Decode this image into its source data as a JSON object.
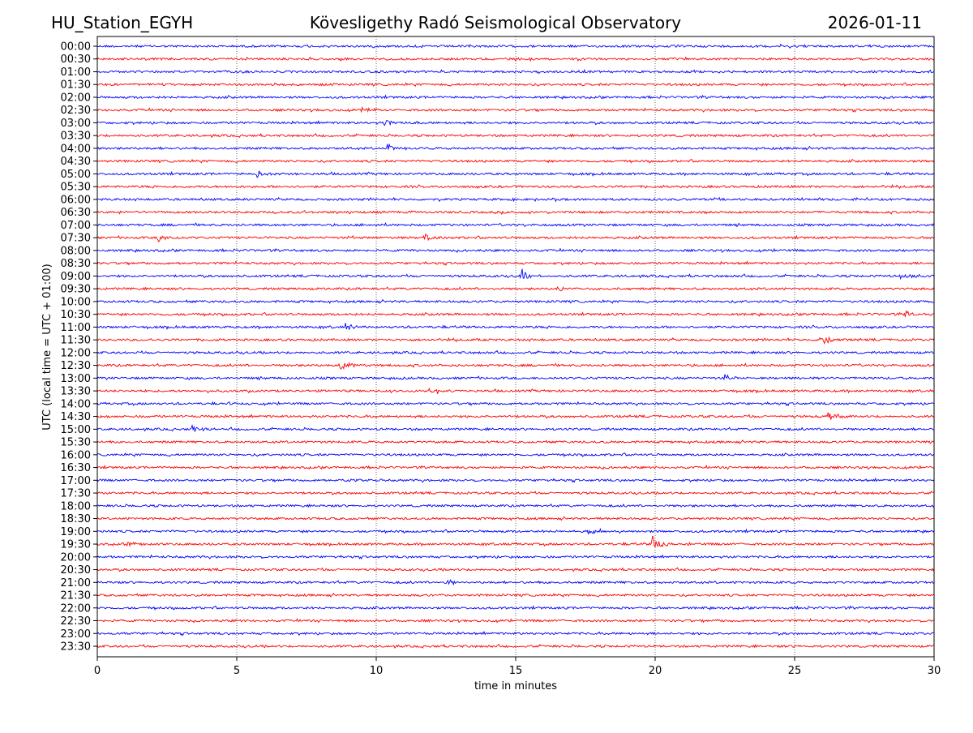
{
  "header": {
    "station": "HU_Station_EGYH",
    "title": "Kövesligethy Radó Seismological Observatory",
    "date": "2026-01-11"
  },
  "chart_data": {
    "type": "line",
    "title": "Kövesligethy Radó Seismological Observatory",
    "xlabel": "time in minutes",
    "ylabel": "UTC (local time = UTC + 01:00)",
    "xlim": [
      0,
      30
    ],
    "xticks": [
      "0",
      "5",
      "10",
      "15",
      "20",
      "25",
      "30"
    ],
    "grid": "vertical dotted at 5-minute intervals",
    "colors": [
      "#0000ff",
      "#ff0000"
    ],
    "rows": [
      "00:00",
      "00:30",
      "01:00",
      "01:30",
      "02:00",
      "02:30",
      "03:00",
      "03:30",
      "04:00",
      "04:30",
      "05:00",
      "05:30",
      "06:00",
      "06:30",
      "07:00",
      "07:30",
      "08:00",
      "08:30",
      "09:00",
      "09:30",
      "10:00",
      "10:30",
      "11:00",
      "11:30",
      "12:00",
      "12:30",
      "13:00",
      "13:30",
      "14:00",
      "14:30",
      "15:00",
      "15:30",
      "16:00",
      "16:30",
      "17:00",
      "17:30",
      "18:00",
      "18:30",
      "19:00",
      "19:30",
      "20:00",
      "20:30",
      "21:00",
      "21:30",
      "22:00",
      "22:30",
      "23:00",
      "23:30"
    ],
    "events": [
      {
        "row": "02:30",
        "minute": 9.5,
        "amplitude": 0.4
      },
      {
        "row": "03:00",
        "minute": 10.3,
        "amplitude": 0.6
      },
      {
        "row": "04:00",
        "minute": 10.4,
        "amplitude": 0.6
      },
      {
        "row": "05:00",
        "minute": 5.7,
        "amplitude": 0.5
      },
      {
        "row": "07:30",
        "minute": 2.2,
        "amplitude": 0.6
      },
      {
        "row": "07:30",
        "minute": 11.7,
        "amplitude": 0.7
      },
      {
        "row": "09:00",
        "minute": 15.2,
        "amplitude": 1.0
      },
      {
        "row": "09:00",
        "minute": 28.8,
        "amplitude": 0.5
      },
      {
        "row": "09:30",
        "minute": 16.5,
        "amplitude": 0.7
      },
      {
        "row": "10:30",
        "minute": 28.9,
        "amplitude": 0.5
      },
      {
        "row": "11:00",
        "minute": 8.9,
        "amplitude": 0.5
      },
      {
        "row": "11:30",
        "minute": 25.9,
        "amplitude": 1.0
      },
      {
        "row": "12:30",
        "minute": 8.7,
        "amplitude": 0.8
      },
      {
        "row": "13:00",
        "minute": 22.5,
        "amplitude": 0.5
      },
      {
        "row": "13:30",
        "minute": 11.9,
        "amplitude": 0.5
      },
      {
        "row": "14:00",
        "minute": 4.5,
        "amplitude": 0.4
      },
      {
        "row": "14:30",
        "minute": 26.2,
        "amplitude": 0.6
      },
      {
        "row": "15:00",
        "minute": 3.4,
        "amplitude": 0.4
      },
      {
        "row": "17:00",
        "minute": 8.8,
        "amplitude": 0.4
      },
      {
        "row": "19:00",
        "minute": 17.6,
        "amplitude": 0.4
      },
      {
        "row": "19:30",
        "minute": 1.0,
        "amplitude": 0.4
      },
      {
        "row": "19:30",
        "minute": 19.9,
        "amplitude": 1.1
      },
      {
        "row": "21:00",
        "minute": 12.5,
        "amplitude": 0.5
      }
    ]
  }
}
